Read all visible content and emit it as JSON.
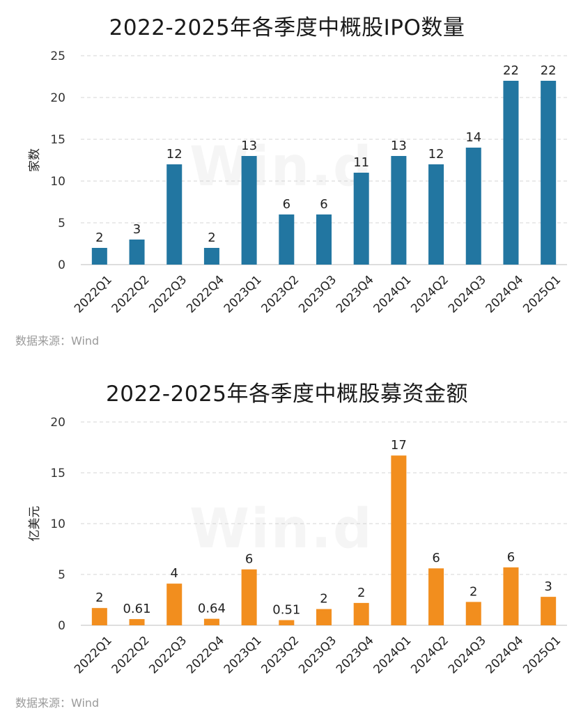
{
  "chart_data": [
    {
      "type": "bar",
      "title": "2022-2025年各季度中概股IPO数量",
      "ylabel": "家数",
      "xlabel": "",
      "categories": [
        "2022Q1",
        "2022Q2",
        "2022Q3",
        "2022Q4",
        "2023Q1",
        "2023Q2",
        "2023Q3",
        "2023Q4",
        "2024Q1",
        "2024Q2",
        "2024Q3",
        "2024Q4",
        "2025Q1"
      ],
      "values": [
        2,
        3,
        12,
        2,
        13,
        6,
        6,
        11,
        13,
        12,
        14,
        22,
        22
      ],
      "data_labels": [
        "2",
        "3",
        "12",
        "2",
        "13",
        "6",
        "6",
        "11",
        "13",
        "12",
        "14",
        "22",
        "22"
      ],
      "ylim": [
        0,
        25
      ],
      "yticks": [
        0,
        5,
        10,
        15,
        20,
        25
      ],
      "grid": true,
      "color": "#2276a1",
      "source": "数据来源：Wind"
    },
    {
      "type": "bar",
      "title": "2022-2025年各季度中概股募资金额",
      "ylabel": "亿美元",
      "xlabel": "",
      "categories": [
        "2022Q1",
        "2022Q2",
        "2022Q3",
        "2022Q4",
        "2023Q1",
        "2023Q2",
        "2023Q3",
        "2023Q4",
        "2024Q1",
        "2024Q2",
        "2024Q3",
        "2024Q4",
        "2025Q1"
      ],
      "values": [
        1.7,
        0.61,
        4.1,
        0.64,
        5.5,
        0.51,
        1.6,
        2.2,
        16.7,
        5.6,
        2.3,
        5.7,
        2.8
      ],
      "data_labels": [
        "2",
        "0.61",
        "4",
        "0.64",
        "6",
        "0.51",
        "2",
        "2",
        "17",
        "6",
        "2",
        "6",
        "3"
      ],
      "ylim": [
        0,
        20
      ],
      "yticks": [
        0,
        5,
        10,
        15,
        20
      ],
      "grid": true,
      "color": "#f28e1e",
      "source": "数据来源：Wind"
    }
  ]
}
